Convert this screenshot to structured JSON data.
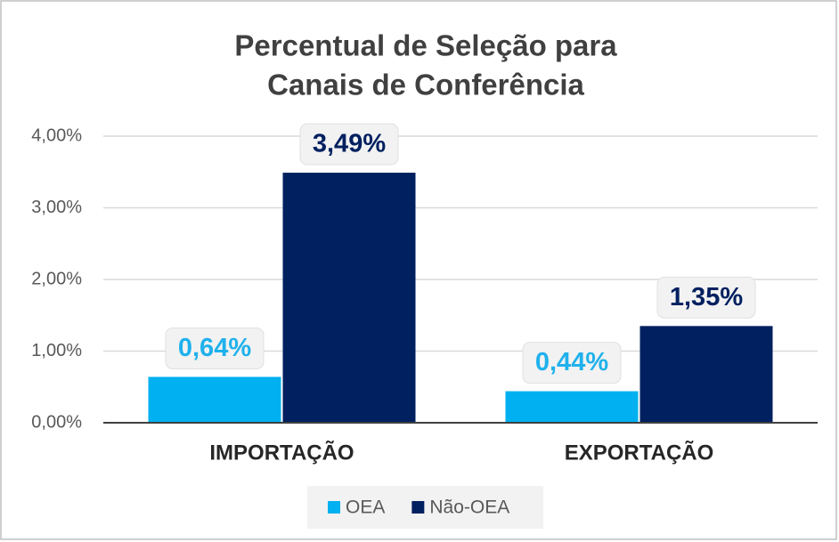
{
  "chart_data": {
    "type": "bar",
    "title": [
      "Percentual de Seleção para",
      "Canais de Conferência"
    ],
    "categories": [
      "IMPORTAÇÃO",
      "EXPORTAÇÃO"
    ],
    "series": [
      {
        "name": "OEA",
        "color": "#00b0f0",
        "values": [
          0.64,
          0.44
        ],
        "value_labels": [
          "0,64%",
          "0,44%"
        ]
      },
      {
        "name": "Não-OEA",
        "color": "#002060",
        "values": [
          3.49,
          1.35
        ],
        "value_labels": [
          "3,49%",
          "1,35%"
        ]
      }
    ],
    "ylim": [
      0,
      4
    ],
    "yticks": [
      {
        "value": 0,
        "label": "0,00%"
      },
      {
        "value": 1,
        "label": "1,00%"
      },
      {
        "value": 2,
        "label": "2,00%"
      },
      {
        "value": 3,
        "label": "3,00%"
      },
      {
        "value": 4,
        "label": "4,00%"
      }
    ],
    "grid": true,
    "legend": "bottom"
  }
}
